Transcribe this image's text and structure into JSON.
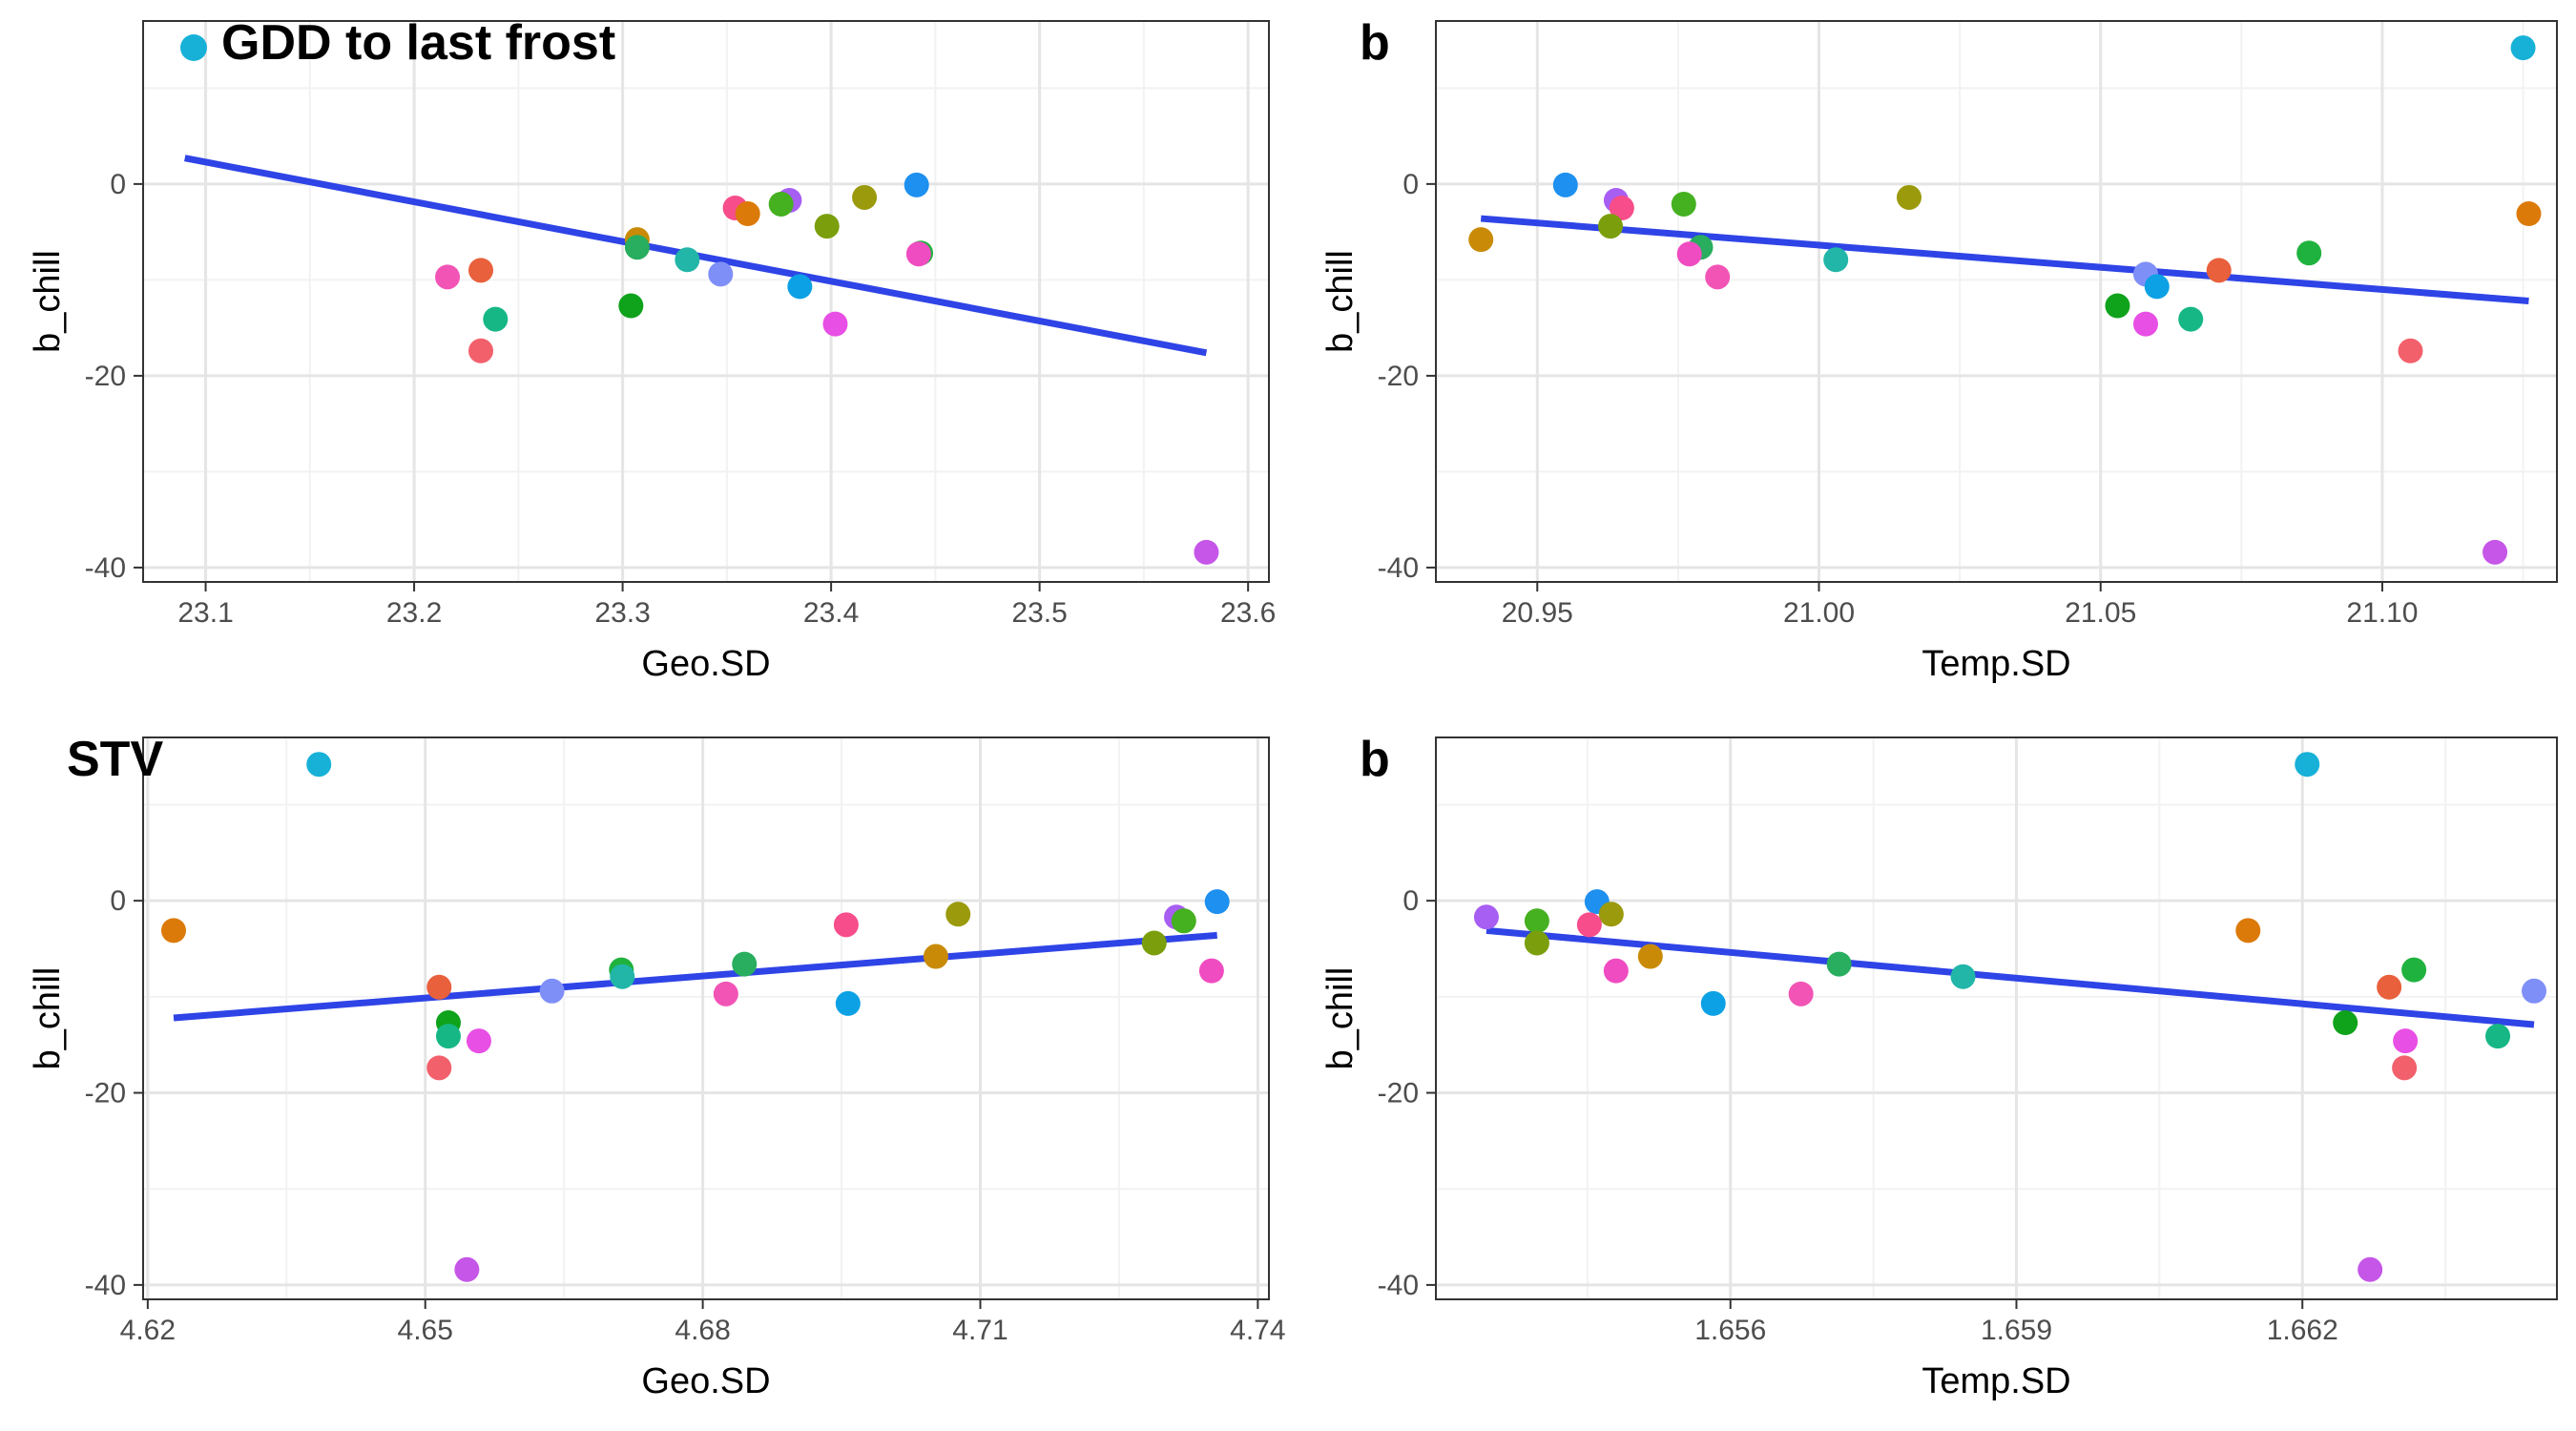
{
  "colors": {
    "fit_line": "#2f44e6",
    "grid_major": "#e5e5e5",
    "grid_minor": "#f2f2f2",
    "panel_border": "#333333",
    "text": "#000000",
    "tick_text": "#4d4d4d"
  },
  "chart_data": [
    {
      "type": "scatter",
      "tag": "GDD to last frost",
      "tag_marker_color": "#17b1d8",
      "xlabel": "Geo.SD",
      "ylabel": "b_chill",
      "xlim": [
        23.07,
        23.61
      ],
      "ylim": [
        -41.5,
        17
      ],
      "x_ticks": [
        "23.1",
        "23.2",
        "23.3",
        "23.4",
        "23.5",
        "23.6"
      ],
      "y_ticks": [
        "0",
        "-20",
        "-40"
      ],
      "grid": true,
      "fit": {
        "x": [
          23.09,
          23.58
        ],
        "y": [
          2.7,
          -17.6
        ]
      },
      "points": [
        {
          "x": 23.441,
          "y": -0.1,
          "color": "#1e90ef"
        },
        {
          "x": 23.38,
          "y": -1.7,
          "color": "#a75ef2"
        },
        {
          "x": 23.416,
          "y": -1.4,
          "color": "#9a9a0c"
        },
        {
          "x": 23.376,
          "y": -2.1,
          "color": "#45b020"
        },
        {
          "x": 23.354,
          "y": -2.5,
          "color": "#f74d8a"
        },
        {
          "x": 23.36,
          "y": -3.1,
          "color": "#dc7a09"
        },
        {
          "x": 23.398,
          "y": -4.4,
          "color": "#7b9f0c"
        },
        {
          "x": 23.307,
          "y": -5.8,
          "color": "#c98b07"
        },
        {
          "x": 23.307,
          "y": -6.6,
          "color": "#28ae5e"
        },
        {
          "x": 23.443,
          "y": -7.2,
          "color": "#20b23e"
        },
        {
          "x": 23.442,
          "y": -7.3,
          "color": "#f04cc1"
        },
        {
          "x": 23.331,
          "y": -7.9,
          "color": "#21b6a8"
        },
        {
          "x": 23.232,
          "y": -9.0,
          "color": "#e8603c"
        },
        {
          "x": 23.347,
          "y": -9.4,
          "color": "#7f8ff8"
        },
        {
          "x": 23.216,
          "y": -9.7,
          "color": "#f254b6"
        },
        {
          "x": 23.385,
          "y": -10.7,
          "color": "#0ca1e4"
        },
        {
          "x": 23.304,
          "y": -12.7,
          "color": "#0fa21b"
        },
        {
          "x": 23.239,
          "y": -14.1,
          "color": "#16b785"
        },
        {
          "x": 23.402,
          "y": -14.6,
          "color": "#e84fe4"
        },
        {
          "x": 23.232,
          "y": -17.4,
          "color": "#f2606c"
        },
        {
          "x": 23.58,
          "y": -38.4,
          "color": "#c556e8"
        }
      ]
    },
    {
      "type": "scatter",
      "tag": "b",
      "xlabel": "Temp.SD",
      "ylabel": "b_chill",
      "xlim": [
        20.932,
        21.131
      ],
      "ylim": [
        -41.5,
        17
      ],
      "x_ticks": [
        "20.95",
        "21.00",
        "21.05",
        "21.10"
      ],
      "y_ticks": [
        "0",
        "-20",
        "-40"
      ],
      "grid": true,
      "fit": {
        "x": [
          20.94,
          21.126
        ],
        "y": [
          -3.6,
          -12.2
        ]
      },
      "points": [
        {
          "x": 21.125,
          "y": 14.2,
          "color": "#17b1d8"
        },
        {
          "x": 20.955,
          "y": -0.1,
          "color": "#1e90ef"
        },
        {
          "x": 21.016,
          "y": -1.4,
          "color": "#9a9a0c"
        },
        {
          "x": 20.964,
          "y": -1.7,
          "color": "#a75ef2"
        },
        {
          "x": 20.976,
          "y": -2.1,
          "color": "#45b020"
        },
        {
          "x": 20.965,
          "y": -2.5,
          "color": "#f74d8a"
        },
        {
          "x": 21.126,
          "y": -3.1,
          "color": "#dc7a09"
        },
        {
          "x": 20.963,
          "y": -4.4,
          "color": "#7b9f0c"
        },
        {
          "x": 20.94,
          "y": -5.8,
          "color": "#c98b07"
        },
        {
          "x": 20.979,
          "y": -6.6,
          "color": "#28ae5e"
        },
        {
          "x": 21.087,
          "y": -7.2,
          "color": "#20b23e"
        },
        {
          "x": 20.977,
          "y": -7.3,
          "color": "#f04cc1"
        },
        {
          "x": 21.003,
          "y": -7.9,
          "color": "#21b6a8"
        },
        {
          "x": 21.071,
          "y": -9.0,
          "color": "#e8603c"
        },
        {
          "x": 21.058,
          "y": -9.4,
          "color": "#7f8ff8"
        },
        {
          "x": 20.982,
          "y": -9.7,
          "color": "#f254b6"
        },
        {
          "x": 21.06,
          "y": -10.7,
          "color": "#0ca1e4"
        },
        {
          "x": 21.053,
          "y": -12.7,
          "color": "#0fa21b"
        },
        {
          "x": 21.066,
          "y": -14.1,
          "color": "#16b785"
        },
        {
          "x": 21.058,
          "y": -14.6,
          "color": "#e84fe4"
        },
        {
          "x": 21.105,
          "y": -17.4,
          "color": "#f2606c"
        },
        {
          "x": 21.12,
          "y": -38.4,
          "color": "#c556e8"
        }
      ]
    },
    {
      "type": "scatter",
      "tag": "STV",
      "xlabel": "Geo.SD",
      "ylabel": "b_chill",
      "xlim": [
        4.6195,
        4.7412
      ],
      "ylim": [
        -41.5,
        17
      ],
      "x_ticks": [
        "4.62",
        "4.65",
        "4.68",
        "4.71",
        "4.74"
      ],
      "y_ticks": [
        "0",
        "-20",
        "-40"
      ],
      "grid": true,
      "fit": {
        "x": [
          4.6228,
          4.7356
        ],
        "y": [
          -12.2,
          -3.6
        ]
      },
      "points": [
        {
          "x": 4.6385,
          "y": 14.2,
          "color": "#17b1d8"
        },
        {
          "x": 4.7356,
          "y": -0.1,
          "color": "#1e90ef"
        },
        {
          "x": 4.7076,
          "y": -1.4,
          "color": "#9a9a0c"
        },
        {
          "x": 4.7312,
          "y": -1.7,
          "color": "#a75ef2"
        },
        {
          "x": 4.732,
          "y": -2.1,
          "color": "#45b020"
        },
        {
          "x": 4.6955,
          "y": -2.5,
          "color": "#f74d8a"
        },
        {
          "x": 4.6228,
          "y": -3.1,
          "color": "#dc7a09"
        },
        {
          "x": 4.7288,
          "y": -4.4,
          "color": "#7b9f0c"
        },
        {
          "x": 4.7052,
          "y": -5.8,
          "color": "#c98b07"
        },
        {
          "x": 4.6845,
          "y": -6.6,
          "color": "#28ae5e"
        },
        {
          "x": 4.6712,
          "y": -7.2,
          "color": "#20b23e"
        },
        {
          "x": 4.735,
          "y": -7.3,
          "color": "#f04cc1"
        },
        {
          "x": 4.6713,
          "y": -7.9,
          "color": "#21b6a8"
        },
        {
          "x": 4.6515,
          "y": -9.0,
          "color": "#e8603c"
        },
        {
          "x": 4.6637,
          "y": -9.4,
          "color": "#7f8ff8"
        },
        {
          "x": 4.6825,
          "y": -9.7,
          "color": "#f254b6"
        },
        {
          "x": 4.6957,
          "y": -10.7,
          "color": "#0ca1e4"
        },
        {
          "x": 4.6525,
          "y": -12.7,
          "color": "#0fa21b"
        },
        {
          "x": 4.6525,
          "y": -14.1,
          "color": "#16b785"
        },
        {
          "x": 4.6558,
          "y": -14.6,
          "color": "#e84fe4"
        },
        {
          "x": 4.6515,
          "y": -17.4,
          "color": "#f2606c"
        },
        {
          "x": 4.6545,
          "y": -38.4,
          "color": "#c556e8"
        }
      ]
    },
    {
      "type": "scatter",
      "tag": "b",
      "xlabel": "Temp.SD",
      "ylabel": "b_chill",
      "xlim": [
        1.65291,
        1.66467
      ],
      "ylim": [
        -41.5,
        17
      ],
      "x_ticks": [
        "1.656",
        "1.659",
        "1.662"
      ],
      "y_ticks": [
        "0",
        "-20",
        "-40"
      ],
      "grid": true,
      "fit": {
        "x": [
          1.65344,
          1.66443
        ],
        "y": [
          -3.1,
          -12.9
        ]
      },
      "points": [
        {
          "x": 1.66205,
          "y": 14.2,
          "color": "#17b1d8"
        },
        {
          "x": 1.6546,
          "y": -0.1,
          "color": "#1e90ef"
        },
        {
          "x": 1.65475,
          "y": -1.4,
          "color": "#9a9a0c"
        },
        {
          "x": 1.65344,
          "y": -1.7,
          "color": "#a75ef2"
        },
        {
          "x": 1.65397,
          "y": -2.1,
          "color": "#45b020"
        },
        {
          "x": 1.65452,
          "y": -2.5,
          "color": "#f74d8a"
        },
        {
          "x": 1.66143,
          "y": -3.1,
          "color": "#dc7a09"
        },
        {
          "x": 1.65397,
          "y": -4.4,
          "color": "#7b9f0c"
        },
        {
          "x": 1.65516,
          "y": -5.8,
          "color": "#c98b07"
        },
        {
          "x": 1.65714,
          "y": -6.6,
          "color": "#28ae5e"
        },
        {
          "x": 1.66317,
          "y": -7.2,
          "color": "#20b23e"
        },
        {
          "x": 1.6548,
          "y": -7.3,
          "color": "#f04cc1"
        },
        {
          "x": 1.65844,
          "y": -7.9,
          "color": "#21b6a8"
        },
        {
          "x": 1.66291,
          "y": -9.0,
          "color": "#e8603c"
        },
        {
          "x": 1.66443,
          "y": -9.4,
          "color": "#7f8ff8"
        },
        {
          "x": 1.65674,
          "y": -9.7,
          "color": "#f254b6"
        },
        {
          "x": 1.65582,
          "y": -10.7,
          "color": "#0ca1e4"
        },
        {
          "x": 1.66245,
          "y": -12.7,
          "color": "#0fa21b"
        },
        {
          "x": 1.66405,
          "y": -14.1,
          "color": "#16b785"
        },
        {
          "x": 1.66308,
          "y": -14.6,
          "color": "#e84fe4"
        },
        {
          "x": 1.66307,
          "y": -17.4,
          "color": "#f2606c"
        },
        {
          "x": 1.66271,
          "y": -38.4,
          "color": "#c556e8"
        }
      ]
    }
  ]
}
